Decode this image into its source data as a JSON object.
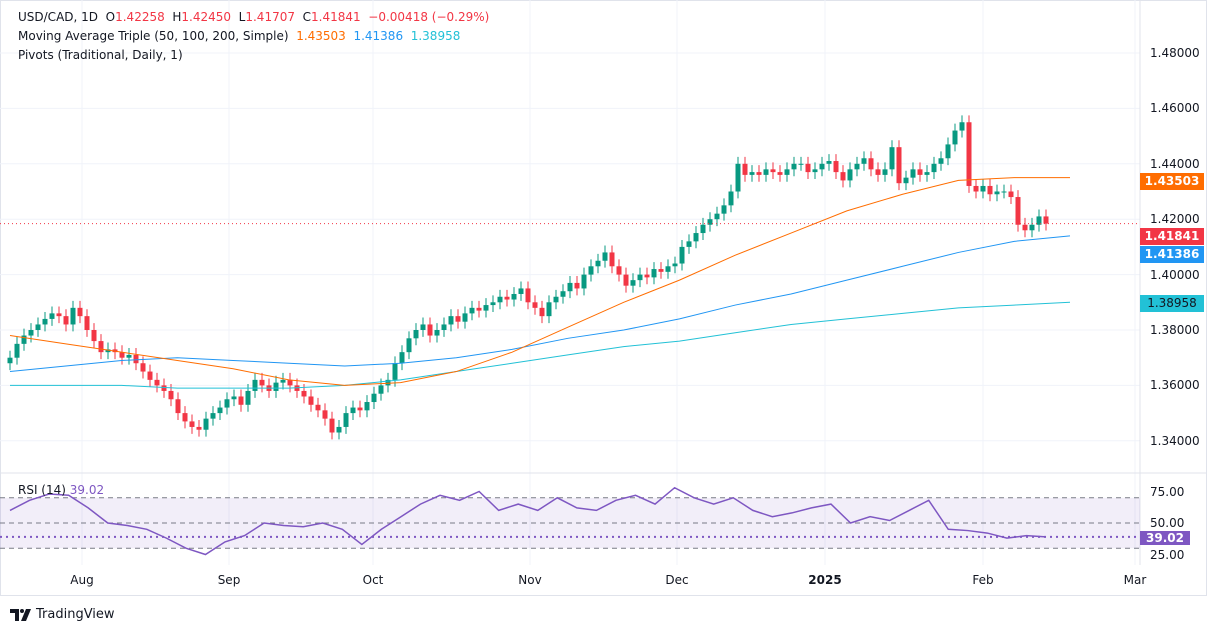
{
  "header": {
    "symbol": "USD/CAD, 1D",
    "open_label": "O",
    "open": "1.42258",
    "high_label": "H",
    "high": "1.42450",
    "low_label": "L",
    "low": "1.41707",
    "close_label": "C",
    "close": "1.41841",
    "change": "−0.00418 (−0.29%)",
    "ma_title": "Moving Average Triple (50, 100, 200, Simple)",
    "ma50": "1.43503",
    "ma100": "1.41386",
    "ma200": "1.38958",
    "pivots_title": "Pivots (Traditional, Daily, 1)",
    "rsi_title": "RSI (14)",
    "rsi_value": "39.02"
  },
  "colors": {
    "up": "#089981",
    "down": "#f23645",
    "ma50": "#ff6d00",
    "ma100": "#2196f3",
    "ma200": "#22c1d6",
    "rsi": "#7e57c2"
  },
  "branding": "TradingView",
  "chart_data": {
    "type": "candlestick",
    "price_ticks": [
      "1.48000",
      "1.46000",
      "1.44000",
      "1.42000",
      "1.40000",
      "1.38000",
      "1.36000",
      "1.34000"
    ],
    "ylim": [
      1.3285,
      1.4865
    ],
    "time_ticks": [
      "Aug",
      "Sep",
      "Oct",
      "Nov",
      "Dec",
      "2025",
      "Feb",
      "Mar"
    ],
    "closes": [
      1.37,
      1.375,
      1.378,
      1.38,
      1.382,
      1.384,
      1.386,
      1.385,
      1.382,
      1.388,
      1.385,
      1.38,
      1.376,
      1.372,
      1.373,
      1.372,
      1.37,
      1.371,
      1.368,
      1.365,
      1.362,
      1.36,
      1.358,
      1.355,
      1.35,
      1.347,
      1.345,
      1.344,
      1.348,
      1.35,
      1.352,
      1.355,
      1.356,
      1.353,
      1.358,
      1.362,
      1.36,
      1.358,
      1.361,
      1.362,
      1.36,
      1.358,
      1.356,
      1.353,
      1.351,
      1.348,
      1.343,
      1.345,
      1.35,
      1.352,
      1.351,
      1.354,
      1.357,
      1.36,
      1.362,
      1.368,
      1.372,
      1.377,
      1.38,
      1.382,
      1.378,
      1.38,
      1.382,
      1.385,
      1.383,
      1.386,
      1.388,
      1.387,
      1.389,
      1.39,
      1.392,
      1.391,
      1.393,
      1.395,
      1.39,
      1.388,
      1.385,
      1.39,
      1.392,
      1.394,
      1.397,
      1.395,
      1.4,
      1.403,
      1.405,
      1.408,
      1.403,
      1.4,
      1.396,
      1.398,
      1.4,
      1.399,
      1.402,
      1.401,
      1.403,
      1.404,
      1.41,
      1.412,
      1.415,
      1.418,
      1.42,
      1.422,
      1.425,
      1.43,
      1.44,
      1.436,
      1.437,
      1.436,
      1.438,
      1.437,
      1.436,
      1.438,
      1.44,
      1.44,
      1.437,
      1.438,
      1.44,
      1.441,
      1.437,
      1.434,
      1.438,
      1.44,
      1.442,
      1.438,
      1.436,
      1.438,
      1.446,
      1.433,
      1.435,
      1.438,
      1.436,
      1.437,
      1.44,
      1.442,
      1.447,
      1.452,
      1.455,
      1.432,
      1.43,
      1.432,
      1.429,
      1.43,
      1.43,
      1.428,
      1.418,
      1.416,
      1.418,
      1.421,
      1.41841
    ],
    "ma50": [
      1.378,
      1.375,
      1.372,
      1.369,
      1.366,
      1.362,
      1.36,
      1.361,
      1.365,
      1.372,
      1.381,
      1.39,
      1.398,
      1.407,
      1.415,
      1.423,
      1.429,
      1.434,
      1.435,
      1.435
    ],
    "ma100": [
      1.365,
      1.367,
      1.369,
      1.37,
      1.369,
      1.368,
      1.367,
      1.368,
      1.37,
      1.373,
      1.377,
      1.38,
      1.384,
      1.389,
      1.393,
      1.398,
      1.403,
      1.408,
      1.412,
      1.414
    ],
    "ma200": [
      1.36,
      1.36,
      1.36,
      1.359,
      1.359,
      1.359,
      1.36,
      1.362,
      1.365,
      1.368,
      1.371,
      1.374,
      1.376,
      1.379,
      1.382,
      1.384,
      1.386,
      1.388,
      1.389,
      1.39
    ],
    "rsi": {
      "levels": [
        70,
        50,
        30
      ],
      "ticks": [
        "75.00",
        "50.00",
        "25.00"
      ],
      "ylim": [
        20,
        82
      ],
      "values": [
        60,
        68,
        73,
        72,
        62,
        50,
        48,
        45,
        38,
        30,
        25,
        35,
        40,
        50,
        48,
        47,
        50,
        45,
        33,
        45,
        55,
        65,
        72,
        68,
        75,
        60,
        65,
        60,
        70,
        62,
        60,
        68,
        72,
        65,
        78,
        70,
        65,
        70,
        60,
        55,
        58,
        62,
        65,
        50,
        55,
        52,
        60,
        68,
        45,
        44,
        42,
        38,
        40,
        39.02
      ]
    }
  }
}
